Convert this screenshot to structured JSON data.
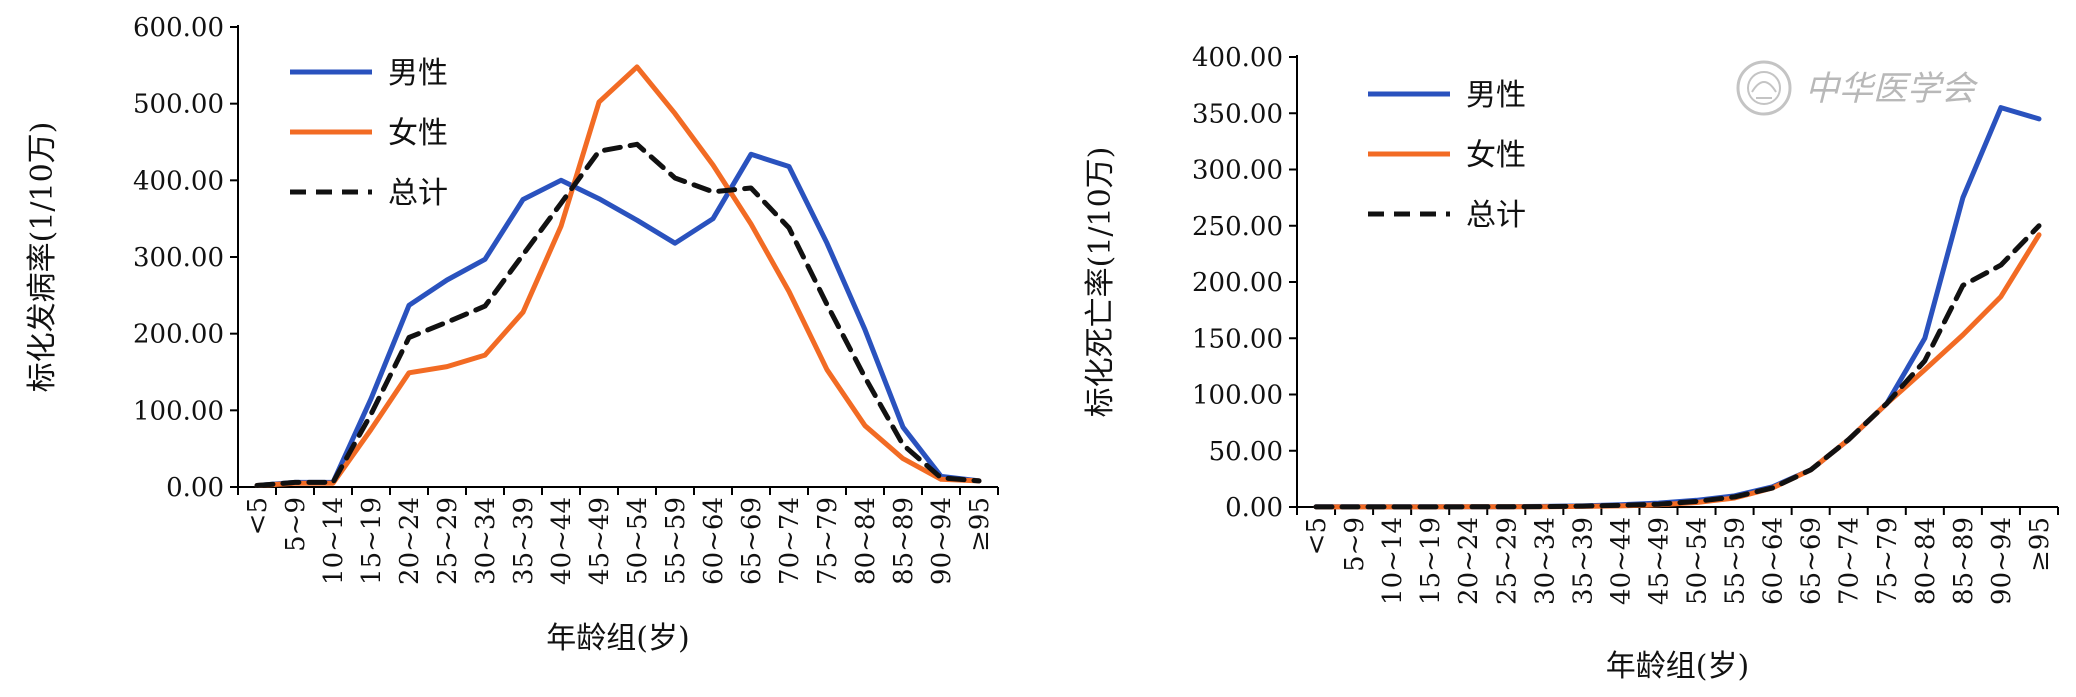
{
  "chart_data": [
    {
      "type": "line",
      "ylabel": "标化发病率(1/10万)",
      "xlabel": "年龄组(岁)",
      "ylim": [
        0,
        600
      ],
      "yticks": [
        "0.00",
        "100.00",
        "200.00",
        "300.00",
        "400.00",
        "500.00",
        "600.00"
      ],
      "categories": [
        "<5",
        "5~9",
        "10~14",
        "15~19",
        "20~24",
        "25~29",
        "30~34",
        "35~39",
        "40~44",
        "45~49",
        "50~54",
        "55~59",
        "60~64",
        "65~69",
        "70~74",
        "75~79",
        "80~84",
        "85~89",
        "90~94",
        "≥95"
      ],
      "legend_position": "top-left",
      "grid": false,
      "series": [
        {
          "name": "男性",
          "color": "#2a52be",
          "style": "solid",
          "values": [
            2,
            6,
            6,
            115,
            237,
            270,
            297,
            375,
            400,
            376,
            348,
            318,
            350,
            434,
            418,
            318,
            205,
            78,
            14,
            8
          ]
        },
        {
          "name": "女性",
          "color": "#f26b24",
          "style": "solid",
          "values": [
            2,
            5,
            5,
            75,
            149,
            157,
            172,
            228,
            340,
            502,
            548,
            487,
            420,
            343,
            255,
            153,
            80,
            37,
            10,
            8
          ]
        },
        {
          "name": "总计",
          "color": "#111111",
          "style": "dashed",
          "values": [
            2,
            6,
            6,
            95,
            195,
            215,
            236,
            303,
            370,
            438,
            447,
            403,
            385,
            390,
            338,
            238,
            143,
            55,
            12,
            8
          ]
        }
      ]
    },
    {
      "type": "line",
      "ylabel": "标化死亡率(1/10万)",
      "xlabel": "年龄组(岁)",
      "ylim": [
        0,
        400
      ],
      "yticks": [
        "0.00",
        "50.00",
        "100.00",
        "150.00",
        "200.00",
        "250.00",
        "300.00",
        "350.00",
        "400.00"
      ],
      "categories": [
        "<5",
        "5~9",
        "10~14",
        "15~19",
        "20~24",
        "25~29",
        "30~34",
        "35~39",
        "40~44",
        "45~49",
        "50~54",
        "55~59",
        "60~64",
        "65~69",
        "70~74",
        "75~79",
        "80~84",
        "85~89",
        "90~94",
        "≥95"
      ],
      "legend_position": "top-left",
      "grid": false,
      "series": [
        {
          "name": "男性",
          "color": "#2a52be",
          "style": "solid",
          "values": [
            0.2,
            0.2,
            0.2,
            0.2,
            0.2,
            0.3,
            0.5,
            1,
            2,
            3.5,
            6,
            10,
            18,
            33,
            60,
            92,
            150,
            275,
            355,
            345
          ]
        },
        {
          "name": "女性",
          "color": "#f26b24",
          "style": "solid",
          "values": [
            0.1,
            0.1,
            0.1,
            0.1,
            0.2,
            0.2,
            0.3,
            0.5,
            1,
            2,
            4,
            8,
            17,
            33,
            60,
            92,
            122,
            153,
            187,
            242
          ]
        },
        {
          "name": "总计",
          "color": "#111111",
          "style": "dashed",
          "values": [
            0.1,
            0.1,
            0.1,
            0.1,
            0.2,
            0.2,
            0.4,
            0.8,
            1.5,
            2.5,
            5,
            9,
            17,
            33,
            60,
            92,
            130,
            197,
            215,
            250
          ]
        }
      ]
    }
  ],
  "watermark": {
    "text": "中华医学会",
    "icon": "society-seal-icon"
  }
}
